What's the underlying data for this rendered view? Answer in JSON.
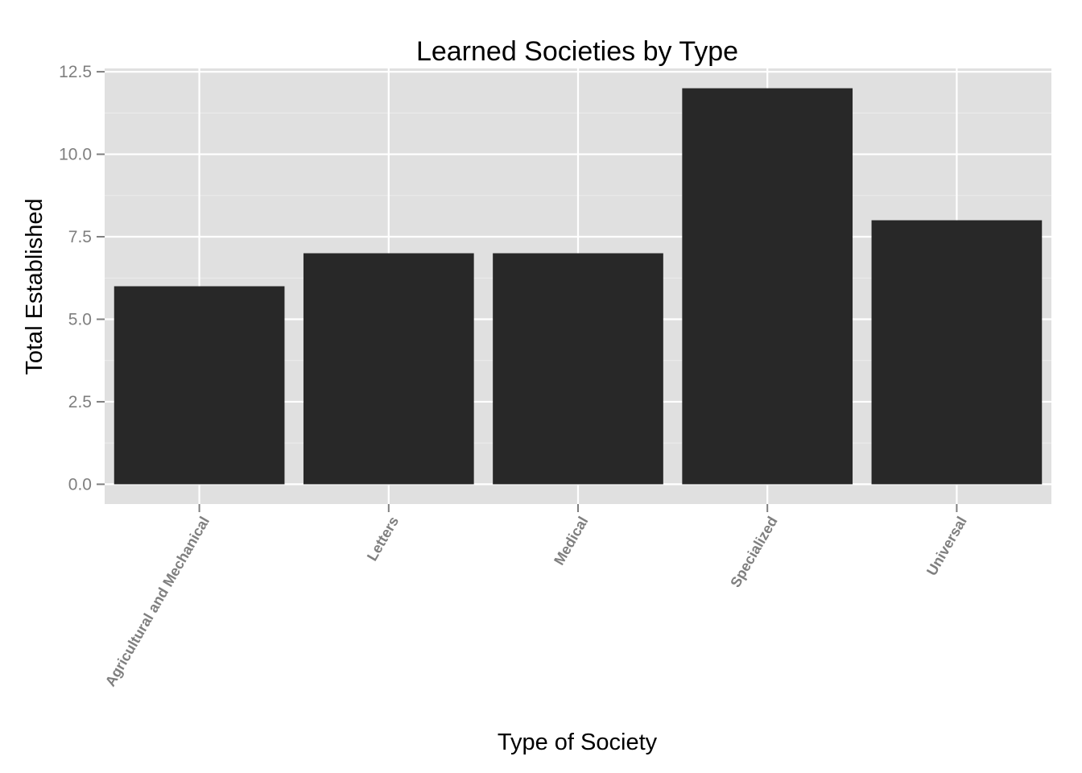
{
  "chart_data": {
    "type": "bar",
    "title": "Learned Societies by Type",
    "xlabel": "Type of Society",
    "ylabel": "Total Established",
    "categories": [
      "Agricultural and Mechanical",
      "Letters",
      "Medical",
      "Specialized",
      "Universal"
    ],
    "values": [
      6,
      7,
      7,
      12,
      8
    ],
    "ylim": [
      -0.6,
      12.6
    ],
    "yticks": [
      0,
      2.5,
      5,
      7.5,
      10,
      12.5
    ],
    "ytick_labels": [
      "0.0",
      "2.5",
      "5.0",
      "7.5",
      "10.0",
      "12.5"
    ],
    "grid": true,
    "legend": "none",
    "colors": {
      "bar": "#282828",
      "panel": "#e0e0e0",
      "grid_major": "#ffffff",
      "grid_minor": "#ececec",
      "tick": "#7f7f7f"
    }
  }
}
